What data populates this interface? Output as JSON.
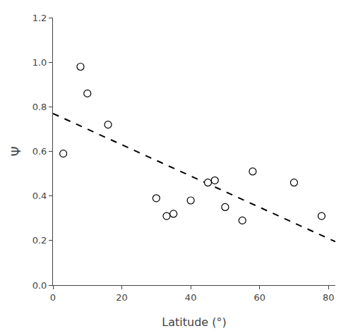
{
  "chart_data": {
    "type": "scatter",
    "xlabel": "Latitude (°)",
    "ylabel": "Ψ",
    "series": [
      {
        "type": "scatter",
        "marker": "open-circle",
        "color": "black",
        "x": [
          3,
          8,
          10,
          16,
          30,
          33,
          35,
          40,
          45,
          47,
          50,
          55,
          58,
          70,
          78
        ],
        "values": [
          0.59,
          0.98,
          0.86,
          0.72,
          0.39,
          0.31,
          0.32,
          0.38,
          0.46,
          0.47,
          0.35,
          0.29,
          0.51,
          0.46,
          0.31
        ]
      },
      {
        "type": "line",
        "line_style": "dashed",
        "color": "black",
        "x": [
          0,
          82
        ],
        "values": [
          0.77,
          0.195
        ]
      }
    ],
    "xlim": [
      0,
      82
    ],
    "ylim": [
      0.0,
      1.2
    ],
    "xticks": [
      0,
      20,
      40,
      60,
      80
    ],
    "yticks": [
      {
        "value": 0.0,
        "label": "0.0"
      },
      0.2,
      0.4,
      0.6,
      0.8,
      {
        "value": 1.0,
        "label": "1.0"
      },
      1.2
    ],
    "grid": false
  }
}
